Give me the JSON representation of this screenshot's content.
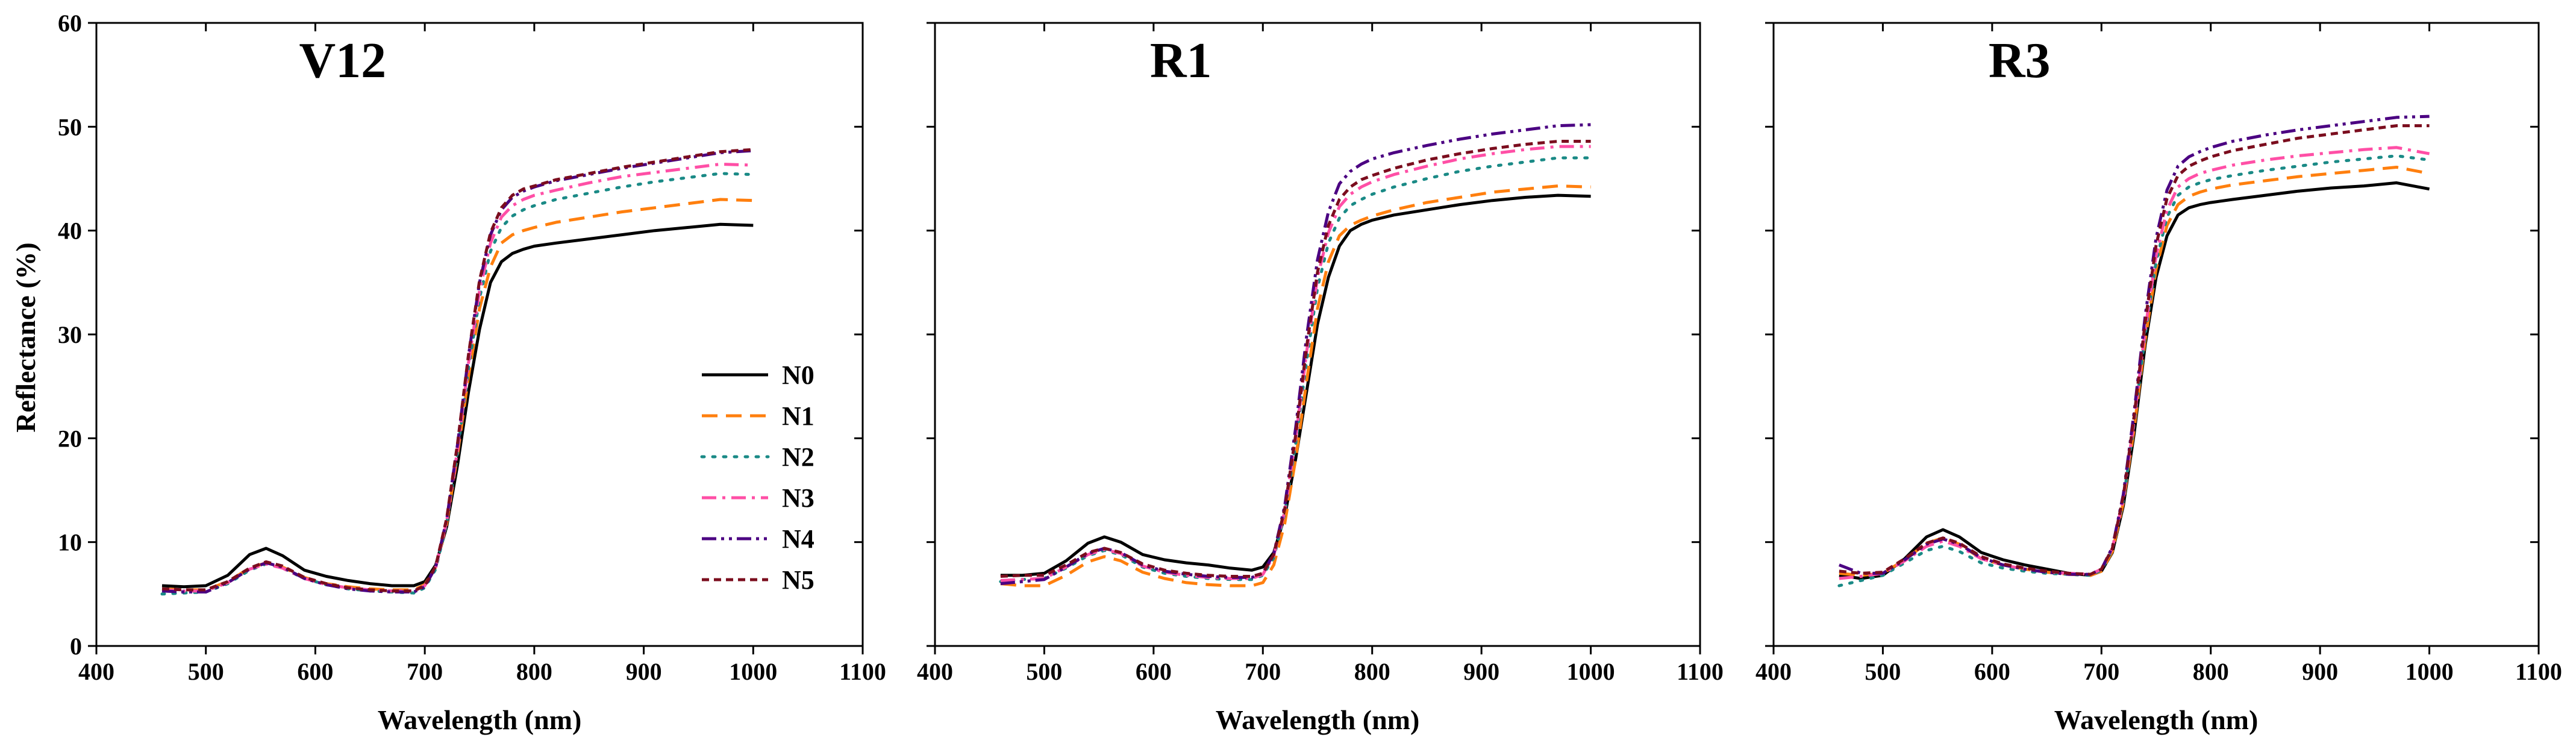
{
  "figure": {
    "ylabel": "Reflectance (%)"
  },
  "chart_data": [
    {
      "type": "line",
      "title": "V12",
      "xlabel": "Wavelength (nm)",
      "ylabel": "Reflectance (%)",
      "xlim": [
        400,
        1100
      ],
      "ylim": [
        0,
        60
      ],
      "xticks": [
        400,
        500,
        600,
        700,
        800,
        900,
        1000,
        1100
      ],
      "yticks": [
        0,
        10,
        20,
        30,
        40,
        50,
        60
      ],
      "x": [
        460,
        480,
        500,
        520,
        540,
        555,
        570,
        590,
        610,
        630,
        650,
        670,
        690,
        700,
        710,
        720,
        730,
        740,
        750,
        760,
        770,
        780,
        790,
        800,
        820,
        850,
        880,
        910,
        940,
        970,
        1000
      ],
      "series": [
        {
          "name": "N0",
          "color": "#000000",
          "dash": "solid",
          "values": [
            5.8,
            5.7,
            5.8,
            6.8,
            8.8,
            9.4,
            8.7,
            7.3,
            6.7,
            6.3,
            6.0,
            5.8,
            5.8,
            6.2,
            7.8,
            11.5,
            17.5,
            24.5,
            30.5,
            35.0,
            37.0,
            37.8,
            38.2,
            38.5,
            38.8,
            39.2,
            39.6,
            40.0,
            40.3,
            40.6,
            40.5
          ]
        },
        {
          "name": "N1",
          "color": "#ff7f0e",
          "dash": "dashed",
          "values": [
            5.5,
            5.4,
            5.4,
            6.2,
            7.5,
            8.0,
            7.6,
            6.6,
            6.0,
            5.7,
            5.5,
            5.4,
            5.4,
            5.9,
            7.6,
            11.8,
            18.5,
            26.0,
            32.5,
            36.5,
            38.8,
            39.6,
            40.0,
            40.3,
            40.8,
            41.3,
            41.8,
            42.2,
            42.6,
            43.0,
            42.9
          ]
        },
        {
          "name": "N2",
          "color": "#1a8a86",
          "dash": "dotted",
          "values": [
            5.0,
            5.1,
            5.2,
            6.0,
            7.3,
            7.9,
            7.5,
            6.5,
            5.9,
            5.5,
            5.3,
            5.2,
            5.1,
            5.6,
            7.4,
            11.8,
            18.8,
            26.8,
            33.5,
            38.0,
            40.3,
            41.4,
            42.0,
            42.4,
            43.0,
            43.6,
            44.2,
            44.7,
            45.1,
            45.5,
            45.4
          ]
        },
        {
          "name": "N3",
          "color": "#ff4fa6",
          "dash": "dashdot",
          "values": [
            5.4,
            5.3,
            5.3,
            6.1,
            7.4,
            7.9,
            7.5,
            6.5,
            5.9,
            5.6,
            5.4,
            5.3,
            5.3,
            5.8,
            7.6,
            12.0,
            19.0,
            27.3,
            34.2,
            38.8,
            41.3,
            42.4,
            43.0,
            43.4,
            43.9,
            44.6,
            45.2,
            45.6,
            46.0,
            46.4,
            46.3
          ]
        },
        {
          "name": "N4",
          "color": "#4b0082",
          "dash": "dashdotdot",
          "values": [
            5.3,
            5.2,
            5.2,
            6.1,
            7.4,
            8.0,
            7.6,
            6.5,
            5.9,
            5.5,
            5.3,
            5.2,
            5.2,
            5.7,
            7.6,
            12.2,
            19.5,
            28.0,
            35.0,
            39.6,
            42.0,
            43.2,
            43.8,
            44.2,
            44.8,
            45.4,
            46.0,
            46.5,
            47.0,
            47.5,
            47.7
          ]
        },
        {
          "name": "N5",
          "color": "#7b0d1e",
          "dash": "shortdash",
          "values": [
            5.5,
            5.4,
            5.4,
            6.2,
            7.5,
            8.1,
            7.7,
            6.6,
            6.0,
            5.6,
            5.4,
            5.3,
            5.3,
            5.8,
            7.7,
            12.3,
            19.6,
            28.1,
            35.2,
            39.8,
            42.2,
            43.4,
            44.0,
            44.3,
            44.9,
            45.5,
            46.1,
            46.6,
            47.1,
            47.6,
            47.8
          ]
        }
      ],
      "legend": {
        "position": "lower-right",
        "entries": [
          "N0",
          "N1",
          "N2",
          "N3",
          "N4",
          "N5"
        ]
      }
    },
    {
      "type": "line",
      "title": "R1",
      "xlabel": "Wavelength (nm)",
      "ylabel": "",
      "xlim": [
        400,
        1100
      ],
      "ylim": [
        0,
        60
      ],
      "xticks": [
        400,
        500,
        600,
        700,
        800,
        900,
        1000,
        1100
      ],
      "yticks": [
        0,
        10,
        20,
        30,
        40,
        50,
        60
      ],
      "x": [
        460,
        480,
        500,
        520,
        540,
        555,
        570,
        590,
        610,
        630,
        650,
        670,
        690,
        700,
        710,
        720,
        730,
        740,
        750,
        760,
        770,
        780,
        790,
        800,
        820,
        850,
        880,
        910,
        940,
        970,
        1000
      ],
      "series": [
        {
          "name": "N0",
          "color": "#000000",
          "dash": "solid",
          "values": [
            6.8,
            6.8,
            7.0,
            8.2,
            9.9,
            10.5,
            10.0,
            8.8,
            8.3,
            8.0,
            7.8,
            7.5,
            7.3,
            7.6,
            9.0,
            12.5,
            18.0,
            24.5,
            31.0,
            35.5,
            38.5,
            40.0,
            40.6,
            41.0,
            41.5,
            42.0,
            42.5,
            42.9,
            43.2,
            43.4,
            43.3
          ]
        },
        {
          "name": "N1",
          "color": "#ff7f0e",
          "dash": "dashed",
          "values": [
            6.0,
            5.8,
            5.8,
            6.8,
            8.1,
            8.6,
            8.2,
            7.1,
            6.5,
            6.1,
            5.9,
            5.8,
            5.8,
            6.1,
            7.8,
            11.8,
            18.0,
            25.5,
            32.5,
            37.0,
            39.5,
            40.5,
            41.0,
            41.4,
            42.0,
            42.7,
            43.2,
            43.7,
            44.0,
            44.3,
            44.2
          ]
        },
        {
          "name": "N2",
          "color": "#1a8a86",
          "dash": "dotted",
          "values": [
            6.2,
            6.4,
            6.5,
            7.5,
            8.7,
            9.2,
            8.8,
            7.6,
            7.0,
            6.7,
            6.5,
            6.4,
            6.4,
            6.8,
            8.5,
            12.8,
            19.5,
            27.5,
            34.5,
            38.8,
            41.2,
            42.4,
            43.0,
            43.5,
            44.2,
            45.0,
            45.7,
            46.2,
            46.6,
            47.0,
            47.0
          ]
        },
        {
          "name": "N3",
          "color": "#ff4fa6",
          "dash": "dashdot",
          "values": [
            6.3,
            6.4,
            6.5,
            7.6,
            8.8,
            9.3,
            8.9,
            7.7,
            7.1,
            6.8,
            6.6,
            6.5,
            6.5,
            6.9,
            8.7,
            13.0,
            20.0,
            28.3,
            35.5,
            39.8,
            42.3,
            43.5,
            44.2,
            44.7,
            45.4,
            46.2,
            46.9,
            47.4,
            47.8,
            48.1,
            48.1
          ]
        },
        {
          "name": "N4",
          "color": "#4b0082",
          "dash": "dashdotdot",
          "values": [
            6.0,
            6.2,
            6.4,
            7.6,
            8.9,
            9.4,
            9.0,
            7.8,
            7.2,
            6.9,
            6.7,
            6.6,
            6.6,
            7.0,
            8.9,
            13.5,
            21.0,
            29.8,
            37.2,
            41.8,
            44.5,
            45.7,
            46.4,
            46.9,
            47.5,
            48.2,
            48.8,
            49.3,
            49.7,
            50.1,
            50.2
          ]
        },
        {
          "name": "N5",
          "color": "#7b0d1e",
          "dash": "shortdash",
          "values": [
            6.7,
            6.8,
            6.8,
            7.8,
            9.0,
            9.4,
            9.0,
            7.9,
            7.3,
            7.0,
            6.8,
            6.7,
            6.7,
            7.0,
            8.8,
            13.2,
            20.3,
            28.8,
            36.0,
            40.5,
            43.0,
            44.2,
            44.9,
            45.3,
            46.0,
            46.8,
            47.4,
            47.9,
            48.3,
            48.6,
            48.6
          ]
        }
      ]
    },
    {
      "type": "line",
      "title": "R3",
      "xlabel": "Wavelength (nm)",
      "ylabel": "",
      "xlim": [
        400,
        1100
      ],
      "ylim": [
        0,
        60
      ],
      "xticks": [
        400,
        500,
        600,
        700,
        800,
        900,
        1000,
        1100
      ],
      "yticks": [
        0,
        10,
        20,
        30,
        40,
        50,
        60
      ],
      "x": [
        460,
        480,
        500,
        520,
        540,
        555,
        570,
        590,
        610,
        630,
        650,
        670,
        690,
        700,
        710,
        720,
        730,
        740,
        750,
        760,
        770,
        780,
        790,
        800,
        820,
        850,
        880,
        910,
        940,
        970,
        1000
      ],
      "series": [
        {
          "name": "N0",
          "color": "#000000",
          "dash": "solid",
          "values": [
            6.8,
            6.5,
            6.8,
            8.4,
            10.5,
            11.2,
            10.5,
            9.0,
            8.3,
            7.8,
            7.4,
            7.0,
            6.8,
            7.2,
            9.0,
            13.5,
            20.5,
            29.0,
            35.5,
            39.5,
            41.5,
            42.2,
            42.5,
            42.7,
            43.0,
            43.4,
            43.8,
            44.1,
            44.3,
            44.6,
            44.0
          ]
        },
        {
          "name": "N1",
          "color": "#ff7f0e",
          "dash": "dashed",
          "values": [
            7.0,
            6.8,
            7.0,
            8.3,
            9.9,
            10.4,
            9.8,
            8.4,
            7.8,
            7.4,
            7.1,
            6.9,
            6.8,
            7.2,
            9.1,
            13.8,
            21.0,
            29.5,
            36.3,
            40.5,
            42.5,
            43.3,
            43.7,
            44.0,
            44.4,
            44.8,
            45.2,
            45.5,
            45.8,
            46.1,
            45.5
          ]
        },
        {
          "name": "N2",
          "color": "#1a8a86",
          "dash": "dotted",
          "values": [
            5.8,
            6.3,
            6.8,
            8.0,
            9.2,
            9.6,
            9.1,
            8.0,
            7.5,
            7.2,
            7.0,
            6.9,
            6.8,
            7.3,
            9.3,
            14.0,
            21.5,
            30.0,
            37.0,
            41.3,
            43.4,
            44.2,
            44.6,
            44.9,
            45.3,
            45.8,
            46.2,
            46.6,
            46.9,
            47.2,
            46.8
          ]
        },
        {
          "name": "N3",
          "color": "#ff4fa6",
          "dash": "dashdot",
          "values": [
            6.5,
            6.7,
            7.0,
            8.2,
            9.6,
            10.1,
            9.6,
            8.4,
            7.8,
            7.4,
            7.1,
            7.0,
            6.9,
            7.4,
            9.4,
            14.2,
            21.8,
            30.5,
            37.6,
            42.0,
            44.2,
            45.0,
            45.5,
            45.8,
            46.3,
            46.8,
            47.2,
            47.5,
            47.8,
            48.0,
            47.4
          ]
        },
        {
          "name": "N4",
          "color": "#4b0082",
          "dash": "dashdotdot",
          "values": [
            7.8,
            7.0,
            7.0,
            8.3,
            9.8,
            10.3,
            9.8,
            8.5,
            7.8,
            7.4,
            7.1,
            6.9,
            6.9,
            7.4,
            9.5,
            14.6,
            22.6,
            31.8,
            39.3,
            43.9,
            46.2,
            47.1,
            47.6,
            48.0,
            48.6,
            49.2,
            49.7,
            50.1,
            50.5,
            50.9,
            51.0
          ]
        },
        {
          "name": "N5",
          "color": "#7b0d1e",
          "dash": "shortdash",
          "values": [
            7.2,
            7.0,
            7.1,
            8.4,
            9.9,
            10.4,
            9.9,
            8.6,
            7.9,
            7.5,
            7.2,
            7.0,
            6.9,
            7.4,
            9.4,
            14.4,
            22.2,
            31.2,
            38.6,
            43.1,
            45.3,
            46.2,
            46.7,
            47.1,
            47.7,
            48.3,
            48.9,
            49.3,
            49.7,
            50.1,
            50.1
          ]
        }
      ]
    }
  ]
}
